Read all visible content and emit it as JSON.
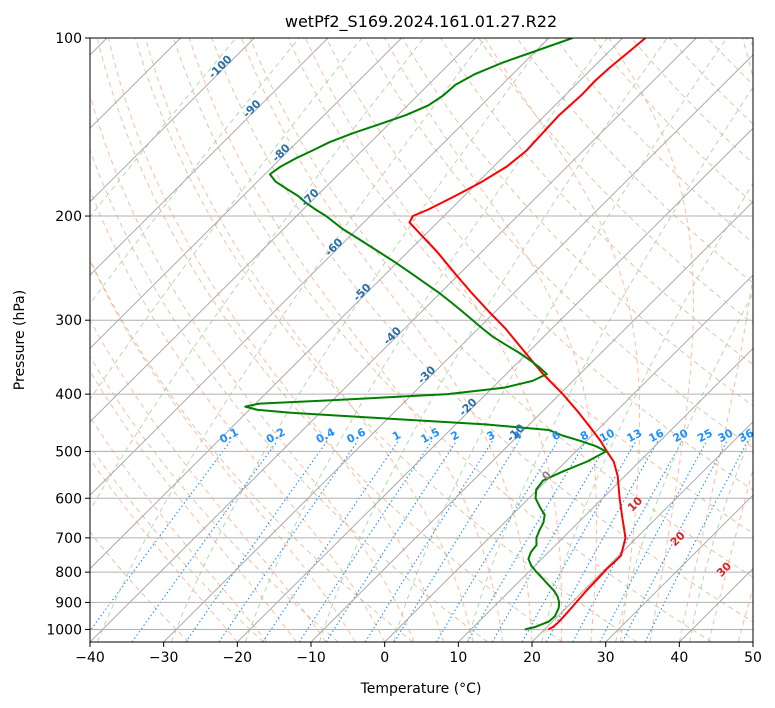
{
  "chart_data": {
    "type": "skew-t",
    "title": "wetPf2_S169.2024.161.01.27.R22",
    "xlabel": "Temperature (°C)",
    "ylabel": "Pressure (hPa)",
    "xlim": [
      -40,
      50
    ],
    "ylim_hpa": [
      1050,
      100
    ],
    "y_scale": "log",
    "grid": true,
    "x_ticks": [
      -40,
      -30,
      -20,
      -10,
      0,
      10,
      20,
      30,
      40,
      50
    ],
    "x_tick_labels": [
      "−40",
      "−30",
      "−20",
      "−10",
      "0",
      "10",
      "20",
      "30",
      "40",
      "50"
    ],
    "y_ticks": [
      100,
      200,
      300,
      400,
      500,
      600,
      700,
      800,
      900,
      1000
    ],
    "y_tick_labels": [
      "100",
      "200",
      "300",
      "400",
      "500",
      "600",
      "700",
      "800",
      "900",
      "1000"
    ],
    "colors": {
      "temperature": "#ff0000",
      "dewpoint": "#008000",
      "isotherm": "#aaaaaa",
      "dry_adiabat": "#d2b48c",
      "moist_adiabat": "#ffa07a",
      "moist_adiabat_label": "#dd2222",
      "mixing_ratio": "#1e90ff",
      "dewpoint_isotherm": "#90c090",
      "isotherm_label": "#2a6fa8"
    },
    "series": [
      {
        "key": "temperature",
        "pressure_hpa": [
          1000,
          990,
          970,
          940,
          900,
          860,
          820,
          790,
          770,
          750,
          700,
          650,
          600,
          550,
          520,
          500,
          480,
          460,
          430,
          400,
          370,
          340,
          310,
          290,
          270,
          250,
          230,
          215,
          205,
          200,
          195,
          185,
          175,
          165,
          155,
          145,
          135,
          125,
          118,
          112,
          106,
          100
        ],
        "temp_c": [
          20.5,
          20.8,
          20.9,
          20.8,
          20.6,
          20.4,
          20.3,
          20.2,
          20.3,
          20.3,
          18.5,
          15.5,
          12.3,
          9.0,
          6.5,
          4.2,
          1.9,
          -0.7,
          -4.9,
          -9.6,
          -15.0,
          -20.4,
          -26.3,
          -30.9,
          -35.7,
          -40.7,
          -46.0,
          -50.6,
          -53.8,
          -54.2,
          -53.0,
          -51.2,
          -49.5,
          -48.2,
          -47.7,
          -47.9,
          -48.1,
          -47.8,
          -47.9,
          -47.7,
          -47.3,
          -46.9
        ]
      },
      {
        "key": "dewpoint",
        "pressure_hpa": [
          1000,
          990,
          970,
          950,
          920,
          900,
          880,
          860,
          840,
          820,
          800,
          780,
          760,
          740,
          720,
          700,
          680,
          660,
          640,
          620,
          600,
          580,
          560,
          540,
          520,
          500,
          490,
          480,
          470,
          460,
          450,
          440,
          430,
          425,
          420,
          415,
          410,
          400,
          390,
          380,
          370,
          360,
          350,
          340,
          330,
          320,
          310,
          300,
          290,
          280,
          270,
          260,
          250,
          240,
          230,
          220,
          210,
          200,
          195,
          190,
          185,
          180,
          175,
          170,
          165,
          160,
          155,
          150,
          145,
          140,
          135,
          130,
          125,
          120,
          115,
          110,
          105,
          100
        ],
        "temp_c": [
          17.3,
          18.4,
          19.5,
          19.6,
          19.0,
          18.3,
          17.3,
          16.0,
          14.4,
          12.8,
          11.1,
          9.5,
          8.2,
          7.6,
          7.4,
          6.4,
          5.8,
          5.3,
          4.4,
          2.6,
          0.9,
          -0.2,
          -0.5,
          1.0,
          2.9,
          4.1,
          2.0,
          -0.8,
          -4.0,
          -6.6,
          -16.0,
          -30.0,
          -44.0,
          -49.0,
          -51.0,
          -49.5,
          -40.5,
          -25.2,
          -18.4,
          -15.5,
          -14.5,
          -16.5,
          -18.8,
          -21.3,
          -24.1,
          -26.9,
          -29.4,
          -31.9,
          -34.5,
          -37.2,
          -40.1,
          -43.3,
          -46.6,
          -50.1,
          -53.9,
          -57.9,
          -62.1,
          -66.0,
          -68.3,
          -70.5,
          -72.5,
          -75.0,
          -77.5,
          -79.3,
          -78.9,
          -78.0,
          -76.8,
          -75.6,
          -73.7,
          -71.3,
          -68.9,
          -67.2,
          -66.5,
          -66.3,
          -65.1,
          -62.9,
          -59.9,
          -56.8
        ]
      }
    ],
    "annotations": {
      "isotherm_labels": [
        "-100",
        "-90",
        "-80",
        "-70",
        "-60",
        "-50",
        "-40",
        "-30",
        "-20",
        "-10",
        "0"
      ],
      "mixing_ratio_labels": [
        "0.1",
        "0.2",
        "0.4",
        "0.6",
        "1",
        "1.5",
        "2",
        "3",
        "4",
        "6",
        "8",
        "10",
        "13",
        "16",
        "20",
        "25",
        "30",
        "36"
      ],
      "moist_adiabat_labels": [
        "10",
        "20",
        "30",
        "40"
      ]
    }
  }
}
